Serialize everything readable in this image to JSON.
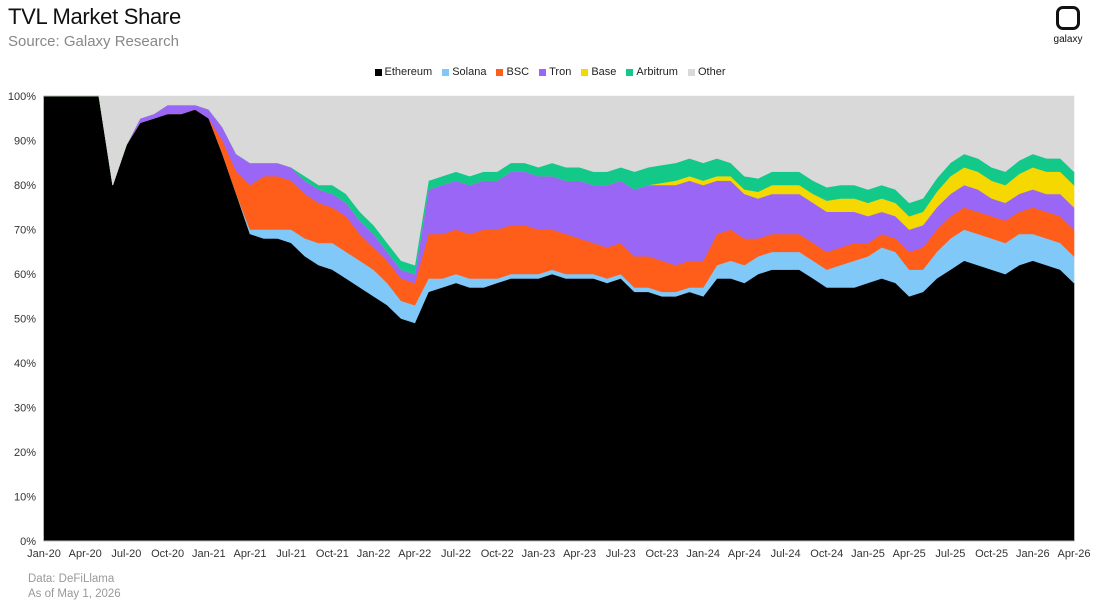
{
  "header": {
    "title": "TVL Market Share",
    "subtitle": "Source: Galaxy Research",
    "brand": "galaxy"
  },
  "footer": {
    "data_source": "Data: DeFiLlama",
    "as_of": "As of May 1, 2026"
  },
  "chart_data": {
    "type": "area",
    "stacked": true,
    "title": "TVL Market Share",
    "xlabel": "",
    "ylabel": "",
    "ylim": [
      0,
      100
    ],
    "y_ticks": [
      "0%",
      "10%",
      "20%",
      "30%",
      "40%",
      "50%",
      "60%",
      "70%",
      "80%",
      "90%",
      "100%"
    ],
    "x_tick_labels": [
      "Jan-20",
      "Apr-20",
      "Jul-20",
      "Oct-20",
      "Jan-21",
      "Apr-21",
      "Jul-21",
      "Oct-21",
      "Jan-22",
      "Apr-22",
      "Jul-22",
      "Oct-22",
      "Jan-23",
      "Apr-23",
      "Jul-23",
      "Oct-23",
      "Jan-24",
      "Apr-24",
      "Jul-24",
      "Oct-24",
      "Jan-25",
      "Apr-25",
      "Jul-25",
      "Oct-25",
      "Jan-26",
      "Apr-26"
    ],
    "grid": false,
    "legend_position": "top",
    "x": [
      "2020-01",
      "2020-02",
      "2020-03",
      "2020-04",
      "2020-05",
      "2020-06",
      "2020-07",
      "2020-08",
      "2020-09",
      "2020-10",
      "2020-11",
      "2020-12",
      "2021-01",
      "2021-02",
      "2021-03",
      "2021-04",
      "2021-05",
      "2021-06",
      "2021-07",
      "2021-08",
      "2021-09",
      "2021-10",
      "2021-11",
      "2021-12",
      "2022-01",
      "2022-02",
      "2022-03",
      "2022-04",
      "2022-05",
      "2022-06",
      "2022-07",
      "2022-08",
      "2022-09",
      "2022-10",
      "2022-11",
      "2022-12",
      "2023-01",
      "2023-02",
      "2023-03",
      "2023-04",
      "2023-05",
      "2023-06",
      "2023-07",
      "2023-08",
      "2023-09",
      "2023-10",
      "2023-11",
      "2023-12",
      "2024-01",
      "2024-02",
      "2024-03",
      "2024-04",
      "2024-05",
      "2024-06",
      "2024-07",
      "2024-08",
      "2024-09",
      "2024-10",
      "2024-11",
      "2024-12",
      "2025-01",
      "2025-02",
      "2025-03",
      "2025-04",
      "2025-05",
      "2025-06",
      "2025-07",
      "2025-08",
      "2025-09",
      "2025-10",
      "2025-11",
      "2025-12",
      "2026-01",
      "2026-02",
      "2026-03",
      "2026-04"
    ],
    "series": [
      {
        "name": "Ethereum",
        "color": "#000000",
        "values": [
          100,
          100,
          100,
          100,
          100,
          80,
          89,
          94,
          95,
          96,
          96,
          97,
          95,
          87,
          78,
          69,
          68,
          68,
          67,
          64,
          62,
          61,
          59,
          57,
          55,
          53,
          50,
          49,
          56,
          57,
          58,
          57,
          57,
          58,
          59,
          59,
          59,
          60,
          59,
          59,
          59,
          58,
          59,
          56,
          56,
          55,
          55,
          56,
          55,
          59,
          59,
          58,
          60,
          61,
          61,
          61,
          59,
          57,
          57,
          57,
          58,
          59,
          58,
          55,
          56,
          59,
          61,
          63,
          62,
          61,
          60,
          62,
          63,
          62,
          61,
          58
        ]
      },
      {
        "name": "Solana",
        "color": "#80c8f8",
        "values": [
          0,
          0,
          0,
          0,
          0,
          0,
          0,
          0,
          0,
          0,
          0,
          0,
          0,
          0,
          0,
          1,
          2,
          2,
          3,
          4,
          5,
          6,
          6,
          6,
          6,
          5,
          4,
          4,
          3,
          2,
          2,
          2,
          2,
          1,
          1,
          1,
          1,
          1,
          1,
          1,
          1,
          1,
          1,
          1,
          1,
          1,
          1,
          1,
          2,
          3,
          4,
          4,
          4,
          4,
          4,
          4,
          4,
          4,
          5,
          6,
          6,
          7,
          7,
          6,
          5,
          6,
          7,
          7,
          7,
          7,
          7,
          7,
          6,
          6,
          6,
          6
        ]
      },
      {
        "name": "BSC",
        "color": "#ff5e1a",
        "values": [
          0,
          0,
          0,
          0,
          0,
          0,
          0,
          0,
          0,
          0,
          0,
          0,
          0,
          3,
          5,
          10,
          12,
          12,
          11,
          10,
          9,
          8,
          8,
          6,
          5,
          5,
          5,
          5,
          10,
          10,
          10,
          10,
          11,
          11,
          11,
          11,
          10,
          9,
          9,
          8,
          7,
          7,
          7,
          7,
          7,
          7,
          6,
          6,
          6,
          7,
          7,
          6,
          4,
          4,
          4,
          4,
          4,
          4,
          4,
          4,
          3,
          3,
          3,
          4,
          5,
          5,
          5,
          5,
          5,
          5,
          5,
          5,
          6,
          6,
          6,
          6
        ]
      },
      {
        "name": "Tron",
        "color": "#9966f5",
        "values": [
          0,
          0,
          0,
          0,
          0,
          0,
          0,
          1,
          1,
          2,
          2,
          1,
          2,
          3,
          4,
          5,
          3,
          3,
          3,
          3,
          3,
          3,
          3,
          3,
          3,
          2,
          2,
          2,
          10,
          11,
          11,
          11,
          11,
          11,
          12,
          12,
          12,
          12,
          12,
          13,
          13,
          14,
          14,
          15,
          16,
          17,
          18,
          18,
          17,
          12,
          11,
          10,
          9,
          9,
          9,
          9,
          9,
          9,
          8,
          7,
          6,
          5,
          5,
          5,
          5,
          5,
          5,
          5,
          5,
          4,
          4,
          4,
          4,
          4,
          5,
          5
        ]
      },
      {
        "name": "Base",
        "color": "#f5d800",
        "values": [
          0,
          0,
          0,
          0,
          0,
          0,
          0,
          0,
          0,
          0,
          0,
          0,
          0,
          0,
          0,
          0,
          0,
          0,
          0,
          0,
          0,
          0,
          0,
          0,
          0,
          0,
          0,
          0,
          0,
          0,
          0,
          0,
          0,
          0,
          0,
          0,
          0,
          0,
          0,
          0,
          0,
          0,
          0,
          0,
          0,
          0.5,
          1,
          1,
          1,
          1,
          1,
          1,
          1.5,
          2,
          2,
          2,
          2,
          2.5,
          3,
          3,
          3,
          3,
          3,
          3,
          3,
          3.5,
          4,
          4,
          4,
          4,
          4,
          4.5,
          5,
          5,
          5,
          5
        ]
      },
      {
        "name": "Arbitrum",
        "color": "#13c98a",
        "values": [
          0,
          0,
          0,
          0,
          0,
          0,
          0,
          0,
          0,
          0,
          0,
          0,
          0,
          0,
          0,
          0,
          0,
          0,
          0,
          1,
          1,
          2,
          2,
          2,
          2,
          2,
          2,
          2,
          2,
          2,
          2,
          2,
          2,
          2,
          2,
          2,
          2,
          3,
          3,
          3,
          3,
          3,
          3,
          4,
          4,
          4,
          4,
          4,
          4,
          4,
          3,
          3,
          3,
          3,
          3,
          3,
          3,
          3,
          3,
          3,
          3,
          3,
          3,
          3,
          3,
          3,
          3,
          3,
          3,
          3,
          3,
          3,
          3,
          3,
          3,
          3
        ]
      },
      {
        "name": "Other",
        "color": "#d9d9d9",
        "values": [
          0,
          0,
          0,
          0,
          0,
          20,
          11,
          5,
          4,
          2,
          2,
          2,
          3,
          7,
          13,
          15,
          15,
          15,
          16,
          18,
          20,
          20,
          22,
          26,
          29,
          33,
          37,
          38,
          19,
          18,
          17,
          18,
          17,
          17,
          15,
          15,
          16,
          15,
          16,
          16,
          17,
          17,
          16,
          17,
          16,
          15.5,
          15,
          14,
          15,
          14,
          15,
          18,
          18.5,
          17,
          17,
          17,
          19,
          20.5,
          20,
          20,
          21,
          20,
          21,
          24,
          23,
          18.5,
          15,
          13,
          14,
          16,
          17,
          14.5,
          13,
          14,
          14,
          17
        ]
      }
    ]
  }
}
